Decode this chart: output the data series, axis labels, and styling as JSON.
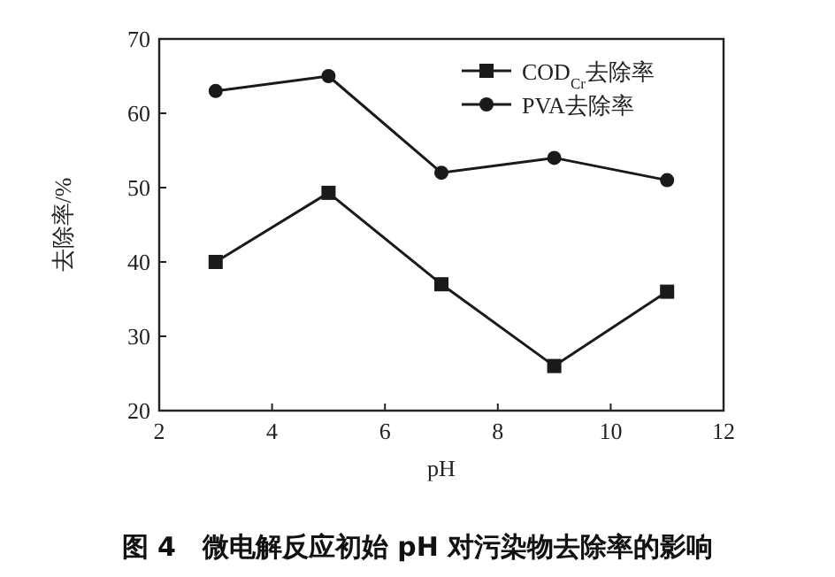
{
  "chart_data": {
    "type": "line",
    "title": "图 4　微电解反应初始 pH 对污染物去除率的影响",
    "xlabel": "pH",
    "ylabel": "去除率/%",
    "x": [
      3,
      5,
      7,
      9,
      11
    ],
    "series": [
      {
        "name": "COD$_{Cr}$去除率",
        "color": "#1a1a1a",
        "marker": "square",
        "values": [
          40,
          49.3,
          37,
          26,
          36
        ]
      },
      {
        "name": "PVA去除率",
        "color": "#1a1a1a",
        "marker": "circle",
        "values": [
          63,
          65,
          52,
          54,
          51
        ]
      }
    ],
    "xlim": [
      2,
      12
    ],
    "xticks": [
      2,
      4,
      6,
      8,
      10,
      12
    ],
    "ylim": [
      20,
      70
    ],
    "yticks": [
      20,
      30,
      40,
      50,
      60,
      70
    ],
    "grid": false,
    "legend": "top right",
    "line_style": "solid"
  }
}
